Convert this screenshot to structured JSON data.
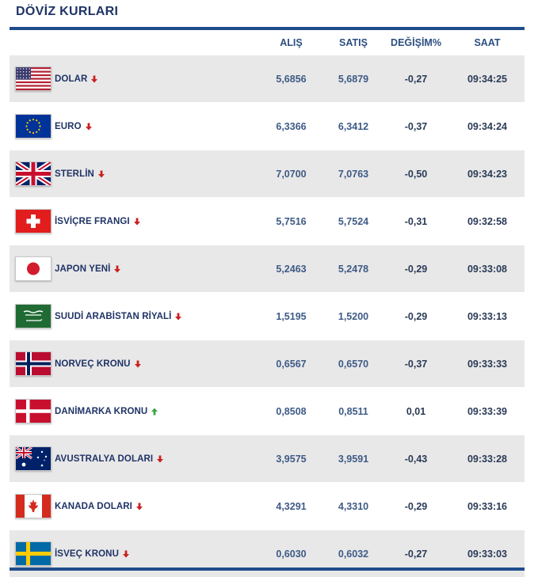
{
  "title": "DÖVİZ KURLARI",
  "headers": {
    "alis": "ALIŞ",
    "satis": "SATIŞ",
    "degisim": "DEĞİŞİM%",
    "saat": "SAAT"
  },
  "colors": {
    "accent": "#1f4d8c",
    "down": "#cc1f1f",
    "up": "#3aa646"
  },
  "rows": [
    {
      "flag": "us-flag-icon",
      "name": "DOLAR",
      "trend": "down",
      "alis": "5,6856",
      "satis": "5,6879",
      "degisim": "-0,27",
      "saat": "09:34:25"
    },
    {
      "flag": "eu-flag-icon",
      "name": "EURO",
      "trend": "down",
      "alis": "6,3366",
      "satis": "6,3412",
      "degisim": "-0,37",
      "saat": "09:34:24"
    },
    {
      "flag": "uk-flag-icon",
      "name": "STERLİN",
      "trend": "down",
      "alis": "7,0700",
      "satis": "7,0763",
      "degisim": "-0,50",
      "saat": "09:34:23"
    },
    {
      "flag": "ch-flag-icon",
      "name": "İSVİÇRE FRANGI",
      "trend": "down",
      "alis": "5,7516",
      "satis": "5,7524",
      "degisim": "-0,31",
      "saat": "09:32:58"
    },
    {
      "flag": "jp-flag-icon",
      "name": "JAPON YENİ",
      "trend": "down",
      "alis": "5,2463",
      "satis": "5,2478",
      "degisim": "-0,29",
      "saat": "09:33:08"
    },
    {
      "flag": "sa-flag-icon",
      "name": "SUUDİ ARABİSTAN RİYALİ",
      "trend": "down",
      "alis": "1,5195",
      "satis": "1,5200",
      "degisim": "-0,29",
      "saat": "09:33:13"
    },
    {
      "flag": "no-flag-icon",
      "name": "NORVEÇ KRONU",
      "trend": "down",
      "alis": "0,6567",
      "satis": "0,6570",
      "degisim": "-0,37",
      "saat": "09:33:33"
    },
    {
      "flag": "dk-flag-icon",
      "name": "DANİMARKA KRONU",
      "trend": "up",
      "alis": "0,8508",
      "satis": "0,8511",
      "degisim": "0,01",
      "saat": "09:33:39"
    },
    {
      "flag": "au-flag-icon",
      "name": "AVUSTRALYA DOLARI",
      "trend": "down",
      "alis": "3,9575",
      "satis": "3,9591",
      "degisim": "-0,43",
      "saat": "09:33:28"
    },
    {
      "flag": "ca-flag-icon",
      "name": "KANADA DOLARI",
      "trend": "down",
      "alis": "4,3291",
      "satis": "4,3310",
      "degisim": "-0,29",
      "saat": "09:33:16"
    },
    {
      "flag": "se-flag-icon",
      "name": "İSVEÇ KRONU",
      "trend": "down",
      "alis": "0,6030",
      "satis": "0,6032",
      "degisim": "-0,27",
      "saat": "09:33:03"
    }
  ]
}
